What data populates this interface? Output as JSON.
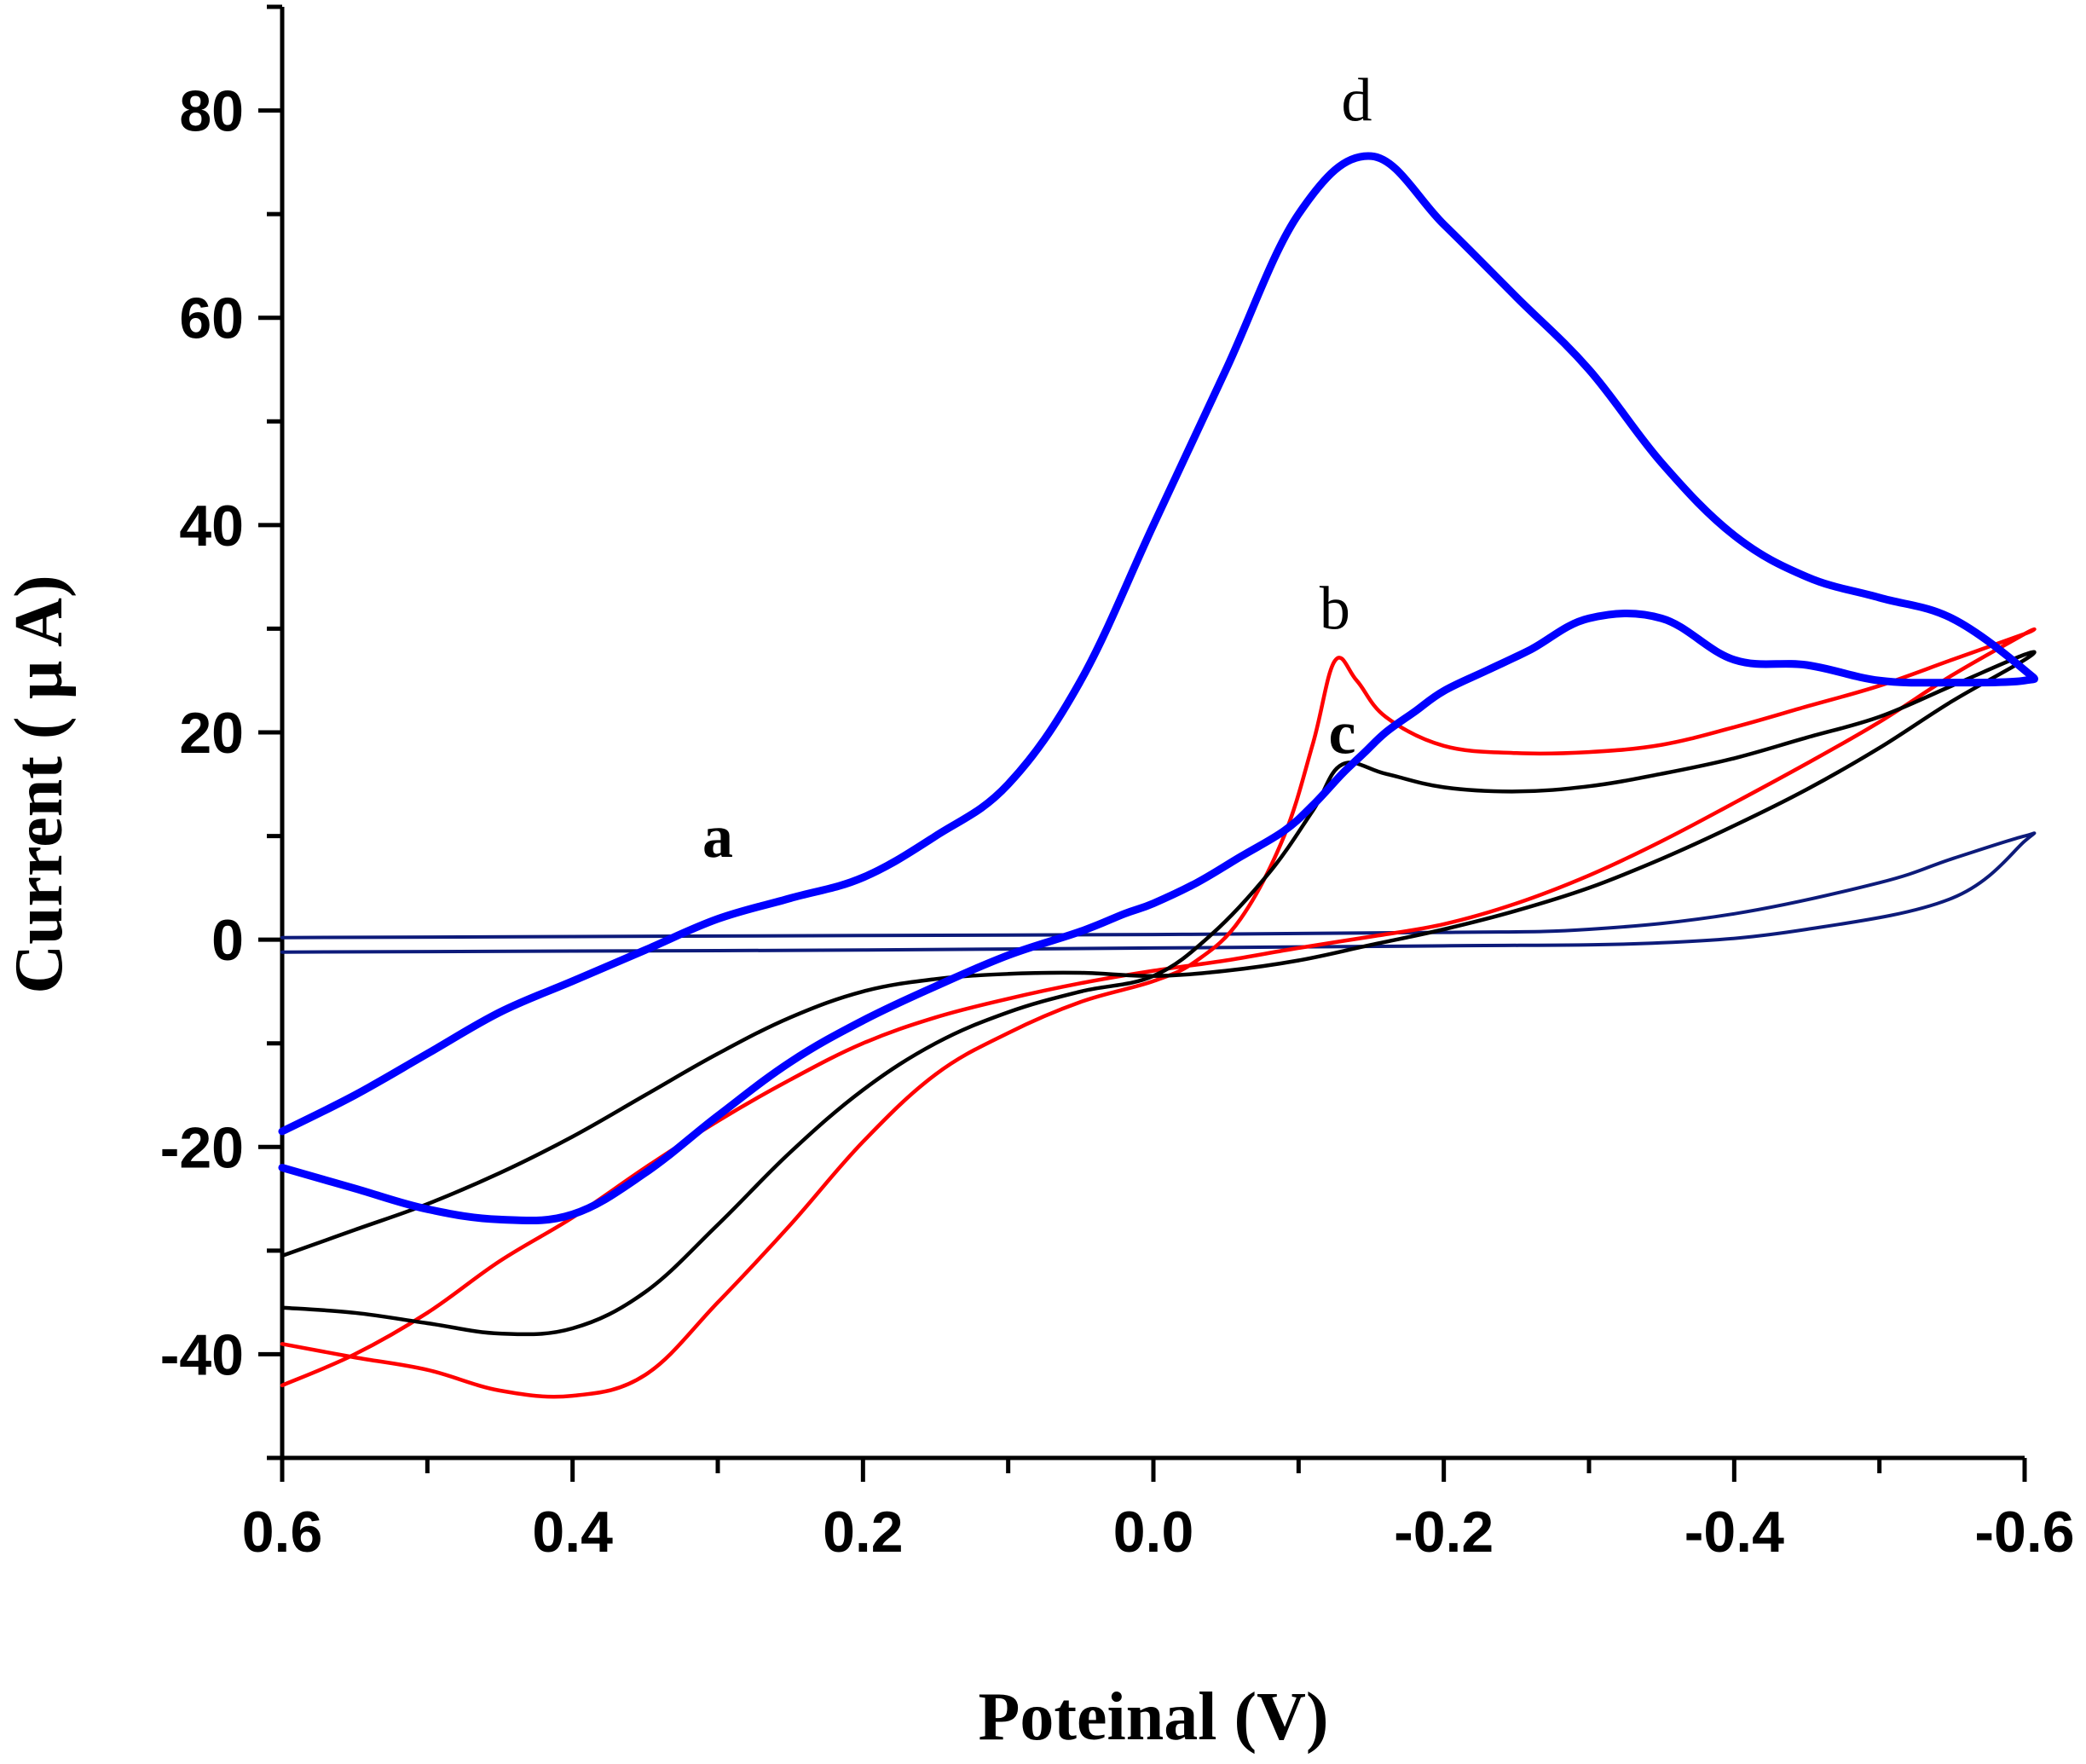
{
  "chart_data": {
    "type": "line",
    "title": "",
    "xlabel": "Poteinal (V)",
    "ylabel": "Current ( µ A)",
    "xlim": [
      0.6,
      -0.6
    ],
    "ylim": [
      -50,
      90
    ],
    "x_ticks": [
      0.6,
      0.4,
      0.2,
      0.0,
      -0.2,
      -0.4,
      -0.6
    ],
    "x_tick_labels": [
      "0.6",
      "0.4",
      "0.2",
      "0.0",
      "-0.2",
      "-0.4",
      "-0.6"
    ],
    "y_ticks": [
      80,
      60,
      40,
      20,
      0,
      -20,
      -40
    ],
    "y_tick_labels": [
      "80",
      "60",
      "40",
      "20",
      "0",
      "-20",
      "-40"
    ],
    "grid": false,
    "series": [
      {
        "name": "a",
        "label": "a",
        "color": "#0d1b7a",
        "width": "thin",
        "label_at": [
          0.3,
          8
        ],
        "label_bold": true,
        "x": [
          0.6,
          0.4,
          0.2,
          0.0,
          -0.2,
          -0.3,
          -0.4,
          -0.5,
          -0.55,
          -0.6,
          -0.6,
          -0.55,
          -0.45,
          -0.35,
          -0.2,
          0.0,
          0.2,
          0.4,
          0.6
        ],
        "y": [
          0.2,
          0.3,
          0.4,
          0.5,
          0.7,
          1.0,
          2.5,
          5.5,
          7.8,
          10.0,
          9.5,
          4.0,
          1.0,
          -0.3,
          -0.6,
          -0.8,
          -1.0,
          -1.1,
          -1.2
        ]
      },
      {
        "name": "b",
        "label": "b",
        "color": "#ff0000",
        "width": "medium",
        "label_at": [
          -0.125,
          30
        ],
        "label_bold": false,
        "x": [
          0.6,
          0.55,
          0.5,
          0.45,
          0.4,
          0.35,
          0.3,
          0.25,
          0.2,
          0.15,
          0.1,
          0.05,
          0.0,
          -0.03,
          -0.06,
          -0.09,
          -0.11,
          -0.125,
          -0.14,
          -0.16,
          -0.2,
          -0.25,
          -0.3,
          -0.35,
          -0.4,
          -0.45,
          -0.5,
          -0.55,
          -0.6,
          -0.6,
          -0.55,
          -0.5,
          -0.45,
          -0.4,
          -0.35,
          -0.3,
          -0.25,
          -0.2,
          -0.15,
          -0.1,
          -0.05,
          0.0,
          0.05,
          0.1,
          0.15,
          0.2,
          0.25,
          0.3,
          0.35,
          0.4,
          0.45,
          0.5,
          0.55,
          0.6
        ],
        "y": [
          -39,
          -40.3,
          -41.5,
          -43.5,
          -44,
          -42,
          -35,
          -27.5,
          -19.5,
          -13,
          -9,
          -6,
          -4,
          -2,
          2,
          10,
          19,
          26.9,
          25,
          21.5,
          18.7,
          18,
          18.1,
          18.8,
          20.5,
          22.5,
          24.5,
          27,
          29.5,
          29.5,
          25.5,
          21,
          17,
          13.2,
          9.5,
          6.2,
          3.5,
          1.5,
          0.3,
          -0.8,
          -2,
          -3,
          -4.2,
          -5.7,
          -7.5,
          -10,
          -13.5,
          -17.5,
          -22,
          -26.8,
          -31,
          -36,
          -40,
          -43
        ]
      },
      {
        "name": "c",
        "label": "c",
        "color": "#000000",
        "width": "medium",
        "label_at": [
          -0.13,
          18
        ],
        "label_bold": true,
        "x": [
          0.6,
          0.55,
          0.5,
          0.45,
          0.4,
          0.35,
          0.3,
          0.25,
          0.2,
          0.15,
          0.1,
          0.05,
          0.0,
          -0.04,
          -0.08,
          -0.11,
          -0.13,
          -0.16,
          -0.2,
          -0.25,
          -0.3,
          -0.35,
          -0.4,
          -0.45,
          -0.5,
          -0.55,
          -0.6,
          -0.6,
          -0.55,
          -0.5,
          -0.45,
          -0.4,
          -0.35,
          -0.3,
          -0.25,
          -0.2,
          -0.15,
          -0.1,
          -0.05,
          0.0,
          0.05,
          0.1,
          0.15,
          0.2,
          0.25,
          0.3,
          0.35,
          0.4,
          0.45,
          0.5,
          0.55,
          0.6
        ],
        "y": [
          -35.5,
          -36,
          -37,
          -38,
          -37.5,
          -34,
          -27.5,
          -20.5,
          -14.5,
          -10,
          -7,
          -5,
          -3.5,
          0.5,
          6.5,
          12.5,
          16.9,
          16,
          14.7,
          14.3,
          14.8,
          16,
          17.5,
          19.5,
          21.5,
          24.5,
          27.5,
          27,
          23,
          18.5,
          14.5,
          11,
          7.8,
          5,
          2.8,
          1.0,
          -0.5,
          -2,
          -3,
          -3.5,
          -3.2,
          -3.3,
          -3.8,
          -5,
          -7.5,
          -11,
          -15,
          -19,
          -22.5,
          -25.5,
          -28,
          -30.5
        ]
      },
      {
        "name": "d",
        "label": "d",
        "color": "#0000ff",
        "width": "thick",
        "label_at": [
          -0.14,
          79
        ],
        "label_bold": false,
        "x": [
          0.6,
          0.55,
          0.5,
          0.45,
          0.4,
          0.35,
          0.3,
          0.25,
          0.2,
          0.15,
          0.1,
          0.05,
          0.02,
          0.0,
          -0.03,
          -0.06,
          -0.09,
          -0.11,
          -0.13,
          -0.145,
          -0.16,
          -0.18,
          -0.2,
          -0.23,
          -0.26,
          -0.3,
          -0.35,
          -0.4,
          -0.45,
          -0.5,
          -0.55,
          -0.6,
          -0.6,
          -0.55,
          -0.5,
          -0.45,
          -0.4,
          -0.35,
          -0.3,
          -0.25,
          -0.2,
          -0.15,
          -0.1,
          -0.05,
          0.0,
          0.05,
          0.1,
          0.15,
          0.2,
          0.25,
          0.3,
          0.35,
          0.4,
          0.45,
          0.5,
          0.55,
          0.6
        ],
        "y": [
          -22,
          -24,
          -26,
          -27,
          -26.5,
          -22.5,
          -17,
          -11.8,
          -7.8,
          -4.5,
          -1.5,
          0.8,
          2.5,
          3.5,
          5.5,
          8,
          10.5,
          13,
          16,
          18,
          20,
          22,
          24,
          26,
          28,
          31,
          31,
          27,
          26.5,
          25,
          24.8,
          25,
          26,
          31,
          33,
          35,
          39,
          46,
          55,
          62,
          69,
          75.6,
          70,
          55,
          40,
          25,
          15,
          10,
          6,
          4,
          2,
          -1,
          -4,
          -7,
          -11,
          -15,
          -18.5
        ]
      }
    ]
  }
}
